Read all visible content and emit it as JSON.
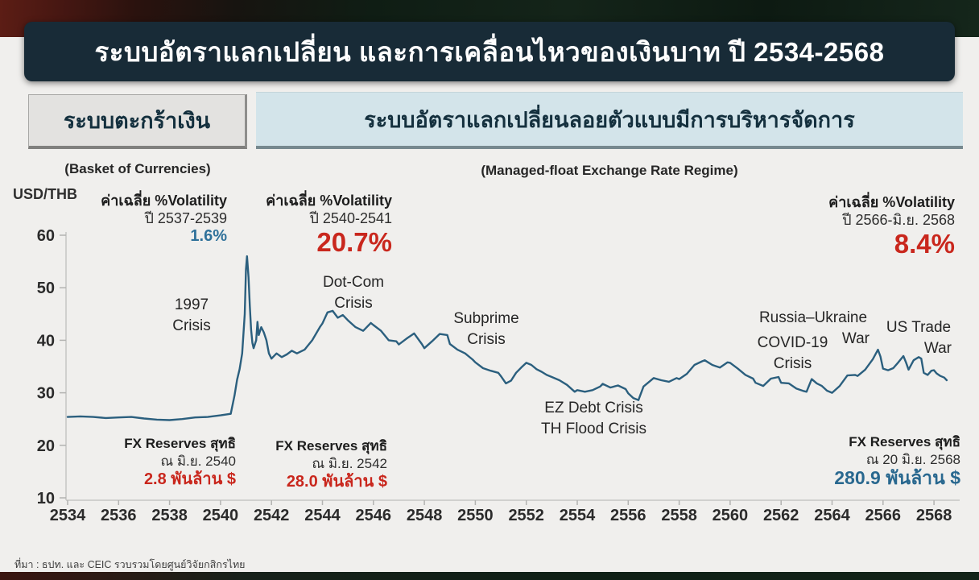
{
  "title": "ระบบอัตราแลกเปลี่ยน และการเคลื่อนไหวของเงินบาท ปี 2534-2568",
  "tabs": {
    "basket": {
      "label": "ระบบตะกร้าเงิน",
      "caption": "(Basket of Currencies)"
    },
    "managed_float": {
      "label": "ระบบอัตราแลกเปลี่ยนลอยตัวแบบมีการบริหารจัดการ",
      "caption": "(Managed-float Exchange Rate Regime)"
    }
  },
  "footer": "ที่มา : ธปท. และ CEIC รวบรวมโดยศูนย์วิจัยกสิกรไทย",
  "colors": {
    "line": "#2b5f7e",
    "red_accent": "#c9271d",
    "blue_accent": "#2f719a",
    "title_bg": "#182b37",
    "basket_tab_bg": "#e3e2e0",
    "managed_tab_bg": "#d3e4ea",
    "page_bg": "#f0efed"
  },
  "chart_data": {
    "type": "line",
    "unit_label": "USD/THB",
    "grid": false,
    "xlim": [
      2533.7,
      2569.2
    ],
    "ylim": [
      10,
      60
    ],
    "x_ticks": [
      2534,
      2536,
      2538,
      2540,
      2542,
      2544,
      2546,
      2548,
      2550,
      2552,
      2554,
      2556,
      2558,
      2560,
      2562,
      2564,
      2566,
      2568
    ],
    "y_ticks": [
      10,
      20,
      30,
      40,
      50,
      60
    ],
    "line_color": "#2b5f7e",
    "series": [
      {
        "name": "USD/THB exchange rate",
        "points": [
          [
            2534,
            25.4
          ],
          [
            2534.5,
            25.5
          ],
          [
            2535,
            25.4
          ],
          [
            2535.5,
            25.2
          ],
          [
            2536,
            25.3
          ],
          [
            2536.5,
            25.4
          ],
          [
            2537,
            25.1
          ],
          [
            2537.5,
            24.9
          ],
          [
            2538,
            24.8
          ],
          [
            2538.5,
            25.0
          ],
          [
            2539,
            25.3
          ],
          [
            2539.5,
            25.4
          ],
          [
            2540,
            25.7
          ],
          [
            2540.4,
            26.0
          ],
          [
            2540.55,
            29.5
          ],
          [
            2540.65,
            32.5
          ],
          [
            2540.75,
            34.5
          ],
          [
            2540.85,
            37.5
          ],
          [
            2540.95,
            45.0
          ],
          [
            2541,
            53.5
          ],
          [
            2541.04,
            56.0
          ],
          [
            2541.1,
            52.0
          ],
          [
            2541.15,
            46.5
          ],
          [
            2541.2,
            42.0
          ],
          [
            2541.25,
            39.5
          ],
          [
            2541.3,
            38.5
          ],
          [
            2541.4,
            40.0
          ],
          [
            2541.45,
            43.5
          ],
          [
            2541.5,
            41.0
          ],
          [
            2541.6,
            42.5
          ],
          [
            2541.7,
            41.5
          ],
          [
            2541.8,
            40.0
          ],
          [
            2541.9,
            37.5
          ],
          [
            2542,
            36.5
          ],
          [
            2542.2,
            37.5
          ],
          [
            2542.4,
            36.8
          ],
          [
            2542.6,
            37.3
          ],
          [
            2542.8,
            38.0
          ],
          [
            2543,
            37.5
          ],
          [
            2543.3,
            38.2
          ],
          [
            2543.6,
            40.0
          ],
          [
            2543.9,
            42.5
          ],
          [
            2544,
            43.2
          ],
          [
            2544.2,
            45.3
          ],
          [
            2544.4,
            45.6
          ],
          [
            2544.6,
            44.3
          ],
          [
            2544.8,
            44.8
          ],
          [
            2545,
            43.8
          ],
          [
            2545.3,
            42.5
          ],
          [
            2545.6,
            41.8
          ],
          [
            2545.9,
            43.3
          ],
          [
            2546,
            42.9
          ],
          [
            2546.3,
            41.8
          ],
          [
            2546.6,
            40.0
          ],
          [
            2546.9,
            39.8
          ],
          [
            2547,
            39.2
          ],
          [
            2547.3,
            40.3
          ],
          [
            2547.6,
            41.3
          ],
          [
            2547.9,
            39.3
          ],
          [
            2548,
            38.5
          ],
          [
            2548.3,
            39.8
          ],
          [
            2548.6,
            41.2
          ],
          [
            2548.9,
            41.0
          ],
          [
            2549,
            39.3
          ],
          [
            2549.3,
            38.2
          ],
          [
            2549.6,
            37.5
          ],
          [
            2549.9,
            36.3
          ],
          [
            2550,
            35.8
          ],
          [
            2550.3,
            34.7
          ],
          [
            2550.6,
            34.2
          ],
          [
            2550.9,
            33.8
          ],
          [
            2551,
            33.2
          ],
          [
            2551.2,
            31.8
          ],
          [
            2551.4,
            32.3
          ],
          [
            2551.6,
            33.8
          ],
          [
            2551.8,
            34.8
          ],
          [
            2552,
            35.7
          ],
          [
            2552.2,
            35.3
          ],
          [
            2552.4,
            34.5
          ],
          [
            2552.6,
            34.0
          ],
          [
            2552.8,
            33.4
          ],
          [
            2553,
            33.0
          ],
          [
            2553.3,
            32.4
          ],
          [
            2553.6,
            31.5
          ],
          [
            2553.9,
            30.2
          ],
          [
            2554,
            30.5
          ],
          [
            2554.3,
            30.2
          ],
          [
            2554.6,
            30.5
          ],
          [
            2554.9,
            31.2
          ],
          [
            2555,
            31.7
          ],
          [
            2555.3,
            31.0
          ],
          [
            2555.6,
            31.4
          ],
          [
            2555.9,
            30.7
          ],
          [
            2556,
            29.9
          ],
          [
            2556.2,
            29.0
          ],
          [
            2556.4,
            28.6
          ],
          [
            2556.6,
            31.2
          ],
          [
            2556.8,
            32.0
          ],
          [
            2557,
            32.8
          ],
          [
            2557.3,
            32.4
          ],
          [
            2557.6,
            32.1
          ],
          [
            2557.9,
            32.8
          ],
          [
            2558,
            32.6
          ],
          [
            2558.3,
            33.6
          ],
          [
            2558.6,
            35.3
          ],
          [
            2558.9,
            36.0
          ],
          [
            2559,
            36.2
          ],
          [
            2559.3,
            35.3
          ],
          [
            2559.6,
            34.8
          ],
          [
            2559.9,
            35.8
          ],
          [
            2560,
            35.7
          ],
          [
            2560.3,
            34.6
          ],
          [
            2560.6,
            33.4
          ],
          [
            2560.9,
            32.7
          ],
          [
            2561,
            31.9
          ],
          [
            2561.3,
            31.3
          ],
          [
            2561.6,
            32.7
          ],
          [
            2561.9,
            33.0
          ],
          [
            2562,
            31.9
          ],
          [
            2562.3,
            31.8
          ],
          [
            2562.6,
            30.8
          ],
          [
            2562.9,
            30.3
          ],
          [
            2563,
            30.2
          ],
          [
            2563.2,
            32.6
          ],
          [
            2563.4,
            31.8
          ],
          [
            2563.6,
            31.3
          ],
          [
            2563.8,
            30.4
          ],
          [
            2564,
            30.0
          ],
          [
            2564.3,
            31.3
          ],
          [
            2564.6,
            33.3
          ],
          [
            2564.9,
            33.4
          ],
          [
            2565,
            33.2
          ],
          [
            2565.3,
            34.4
          ],
          [
            2565.6,
            36.4
          ],
          [
            2565.8,
            38.2
          ],
          [
            2565.9,
            36.9
          ],
          [
            2566,
            34.6
          ],
          [
            2566.2,
            34.3
          ],
          [
            2566.4,
            34.7
          ],
          [
            2566.6,
            35.8
          ],
          [
            2566.8,
            37.0
          ],
          [
            2566.9,
            35.8
          ],
          [
            2567,
            34.4
          ],
          [
            2567.2,
            36.2
          ],
          [
            2567.4,
            36.8
          ],
          [
            2567.5,
            36.5
          ],
          [
            2567.6,
            33.8
          ],
          [
            2567.75,
            33.4
          ],
          [
            2567.9,
            34.2
          ],
          [
            2568,
            34.3
          ],
          [
            2568.1,
            33.7
          ],
          [
            2568.25,
            33.2
          ],
          [
            2568.4,
            32.9
          ],
          [
            2568.5,
            32.4
          ]
        ]
      }
    ],
    "volatility_notes": [
      {
        "label": "ค่าเฉลี่ย %Volatility",
        "period": "ปี 2537-2539",
        "value": "1.6%"
      },
      {
        "label": "ค่าเฉลี่ย %Volatility",
        "period": "ปี 2540-2541",
        "value": "20.7%"
      },
      {
        "label": "ค่าเฉลี่ย %Volatility",
        "period": "ปี 2566-มิ.ย. 2568",
        "value": "8.4%"
      }
    ],
    "crises": [
      {
        "line1": "1997",
        "line2": "Crisis"
      },
      {
        "line1": "Dot-Com",
        "line2": "Crisis"
      },
      {
        "line1": "Subprime",
        "line2": "Crisis"
      },
      {
        "line1": "EZ Debt Crisis",
        "line2": "TH Flood Crisis"
      },
      {
        "line1": "COVID-19",
        "line2": "Crisis"
      },
      {
        "line1": "Russia–Ukraine",
        "line2": "War"
      },
      {
        "line1": "US Trade",
        "line2": "War"
      }
    ],
    "fx_reserve_notes": [
      {
        "label": "FX Reserves สุทธิ",
        "date": "ณ มิ.ย. 2540",
        "value": "2.8 พันล้าน $"
      },
      {
        "label": "FX Reserves สุทธิ",
        "date": "ณ มิ.ย. 2542",
        "value": "28.0 พันล้าน $"
      },
      {
        "label": "FX Reserves สุทธิ",
        "date": "ณ 20 มิ.ย. 2568",
        "value": "280.9 พันล้าน $"
      }
    ]
  }
}
